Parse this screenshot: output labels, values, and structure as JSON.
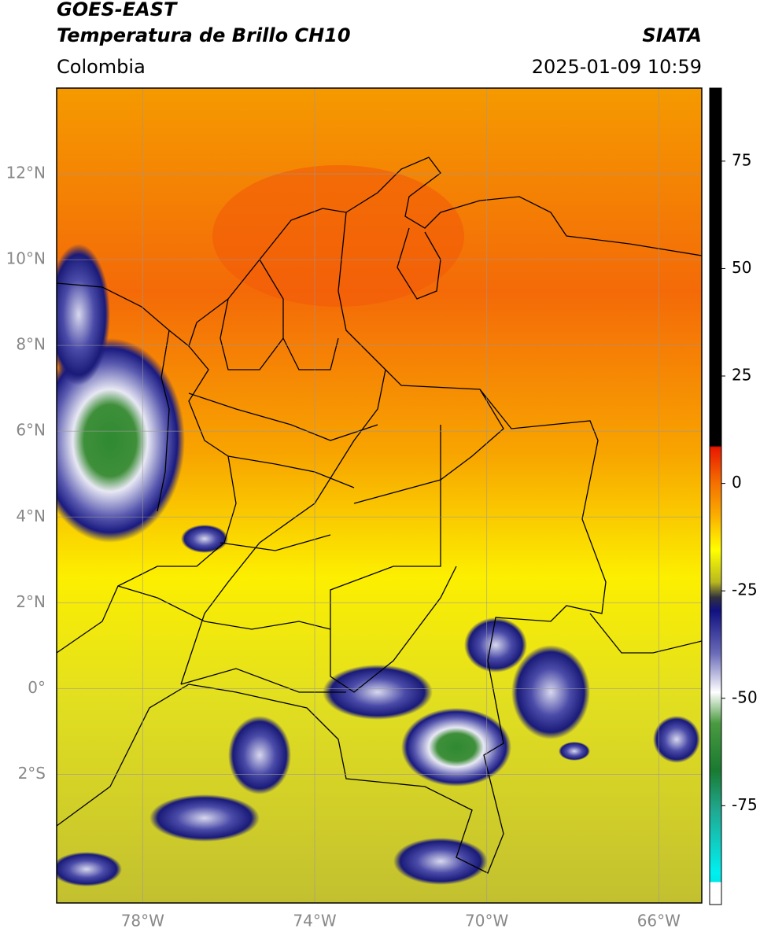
{
  "header": {
    "title": "GOES-EAST",
    "subtitle": "Temperatura de Brillo CH10",
    "source": "SIATA",
    "region": "Colombia",
    "datetime": "2025-01-09 10:59"
  },
  "map": {
    "xlim": [
      -80,
      -65
    ],
    "ylim": [
      -5,
      14
    ],
    "xticks": [
      {
        "value": -78,
        "label": "78°W"
      },
      {
        "value": -74,
        "label": "74°W"
      },
      {
        "value": -70,
        "label": "70°W"
      },
      {
        "value": -66,
        "label": "66°W"
      }
    ],
    "yticks": [
      {
        "value": 12,
        "label": "12°N"
      },
      {
        "value": 10,
        "label": "10°N"
      },
      {
        "value": 8,
        "label": "8°N"
      },
      {
        "value": 6,
        "label": "6°N"
      },
      {
        "value": 4,
        "label": "4°N"
      },
      {
        "value": 2,
        "label": "2°N"
      },
      {
        "value": 0,
        "label": "0°"
      },
      {
        "value": -2,
        "label": "2°S"
      }
    ],
    "grid": true
  },
  "colorbar": {
    "lim": [
      -98,
      92
    ],
    "ticks": [
      75,
      50,
      25,
      0,
      -25,
      -50,
      -75
    ]
  }
}
